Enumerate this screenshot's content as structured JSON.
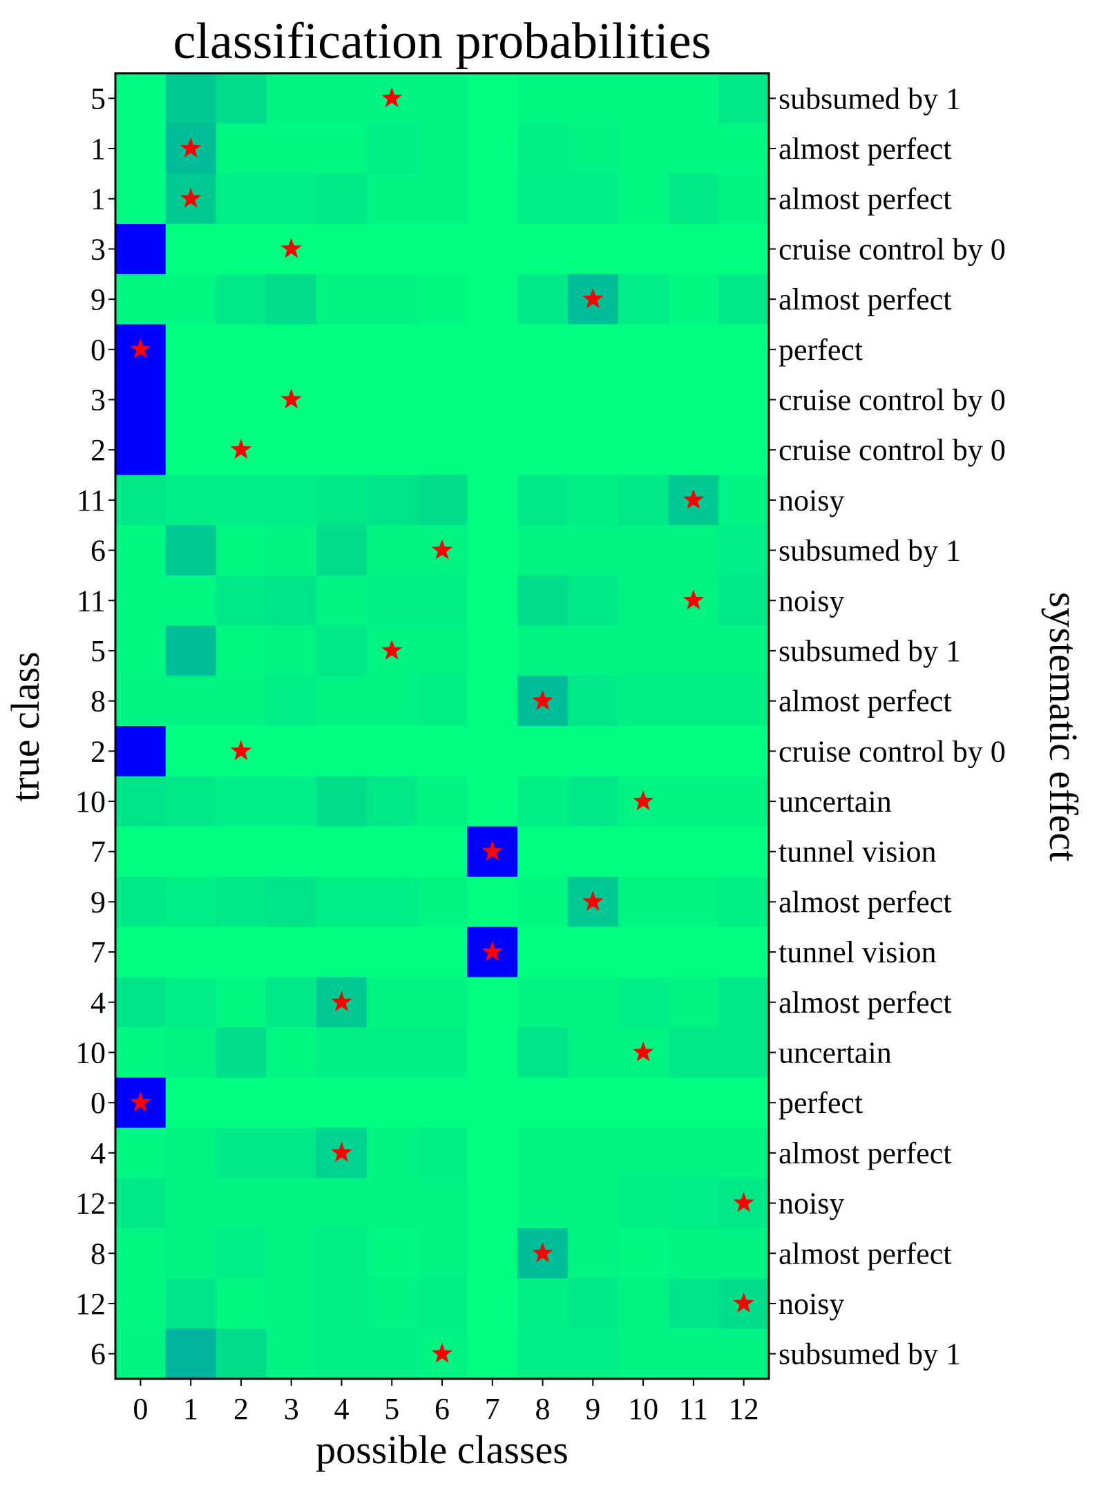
{
  "chart_data": {
    "type": "heatmap",
    "title": "classification probabilities",
    "xlabel": "possible classes",
    "ylabel": "true class",
    "right_label": "systematic effect",
    "x_categories": [
      "0",
      "1",
      "2",
      "3",
      "4",
      "5",
      "6",
      "7",
      "8",
      "9",
      "10",
      "11",
      "12"
    ],
    "y_categories": [
      "5",
      "1",
      "1",
      "3",
      "9",
      "0",
      "3",
      "2",
      "11",
      "6",
      "11",
      "5",
      "8",
      "2",
      "10",
      "7",
      "9",
      "7",
      "4",
      "10",
      "0",
      "4",
      "12",
      "8",
      "12",
      "6"
    ],
    "effects": [
      "subsumed by 1",
      "almost perfect",
      "almost perfect",
      "cruise control by 0",
      "almost perfect",
      "perfect",
      "cruise control by 0",
      "cruise control by 0",
      "noisy",
      "subsumed by 1",
      "noisy",
      "subsumed by 1",
      "almost perfect",
      "cruise control by 0",
      "uncertain",
      "tunnel vision",
      "almost perfect",
      "tunnel vision",
      "almost perfect",
      "uncertain",
      "perfect",
      "almost perfect",
      "noisy",
      "almost perfect",
      "noisy",
      "subsumed by 1"
    ],
    "star_columns": [
      5,
      1,
      1,
      3,
      9,
      0,
      3,
      2,
      11,
      6,
      11,
      5,
      8,
      2,
      10,
      7,
      9,
      7,
      4,
      10,
      0,
      4,
      12,
      8,
      12,
      6
    ],
    "values": [
      [
        0.02,
        0.25,
        0.15,
        0.05,
        0.05,
        0.05,
        0.05,
        0.0,
        0.03,
        0.03,
        0.03,
        0.03,
        0.1
      ],
      [
        0.02,
        0.3,
        0.03,
        0.03,
        0.03,
        0.07,
        0.05,
        0.0,
        0.07,
        0.05,
        0.03,
        0.03,
        0.03
      ],
      [
        0.02,
        0.25,
        0.08,
        0.08,
        0.1,
        0.05,
        0.05,
        0.0,
        0.08,
        0.08,
        0.03,
        0.1,
        0.05
      ],
      [
        1.0,
        0.0,
        0.0,
        0.0,
        0.0,
        0.0,
        0.0,
        0.0,
        0.0,
        0.0,
        0.0,
        0.0,
        0.0
      ],
      [
        0.03,
        0.03,
        0.1,
        0.15,
        0.05,
        0.05,
        0.03,
        0.0,
        0.1,
        0.3,
        0.08,
        0.03,
        0.1
      ],
      [
        1.0,
        0.0,
        0.0,
        0.0,
        0.0,
        0.0,
        0.0,
        0.0,
        0.0,
        0.0,
        0.0,
        0.0,
        0.0
      ],
      [
        1.0,
        0.0,
        0.0,
        0.0,
        0.0,
        0.0,
        0.0,
        0.0,
        0.0,
        0.0,
        0.0,
        0.0,
        0.0
      ],
      [
        1.0,
        0.0,
        0.0,
        0.0,
        0.0,
        0.0,
        0.0,
        0.0,
        0.0,
        0.0,
        0.0,
        0.0,
        0.0
      ],
      [
        0.1,
        0.08,
        0.08,
        0.08,
        0.1,
        0.12,
        0.15,
        0.0,
        0.1,
        0.07,
        0.1,
        0.25,
        0.05
      ],
      [
        0.03,
        0.25,
        0.03,
        0.05,
        0.15,
        0.05,
        0.05,
        0.0,
        0.05,
        0.05,
        0.05,
        0.05,
        0.08
      ],
      [
        0.03,
        0.03,
        0.1,
        0.12,
        0.05,
        0.07,
        0.07,
        0.0,
        0.15,
        0.1,
        0.05,
        0.05,
        0.1
      ],
      [
        0.03,
        0.3,
        0.03,
        0.05,
        0.1,
        0.05,
        0.05,
        0.0,
        0.05,
        0.05,
        0.05,
        0.05,
        0.05
      ],
      [
        0.05,
        0.05,
        0.05,
        0.08,
        0.05,
        0.05,
        0.07,
        0.0,
        0.3,
        0.1,
        0.07,
        0.07,
        0.07
      ],
      [
        1.0,
        0.0,
        0.0,
        0.0,
        0.0,
        0.0,
        0.0,
        0.0,
        0.0,
        0.0,
        0.0,
        0.0,
        0.0
      ],
      [
        0.12,
        0.1,
        0.08,
        0.08,
        0.15,
        0.1,
        0.05,
        0.0,
        0.07,
        0.1,
        0.05,
        0.05,
        0.05
      ],
      [
        0.0,
        0.0,
        0.0,
        0.0,
        0.0,
        0.0,
        0.0,
        1.0,
        0.0,
        0.0,
        0.0,
        0.0,
        0.0
      ],
      [
        0.1,
        0.08,
        0.1,
        0.12,
        0.08,
        0.08,
        0.05,
        0.0,
        0.03,
        0.25,
        0.05,
        0.05,
        0.07
      ],
      [
        0.0,
        0.0,
        0.0,
        0.0,
        0.0,
        0.0,
        0.0,
        1.0,
        0.0,
        0.0,
        0.0,
        0.0,
        0.0
      ],
      [
        0.12,
        0.08,
        0.03,
        0.1,
        0.25,
        0.05,
        0.05,
        0.0,
        0.05,
        0.05,
        0.08,
        0.05,
        0.1
      ],
      [
        0.03,
        0.05,
        0.15,
        0.03,
        0.07,
        0.07,
        0.07,
        0.0,
        0.12,
        0.05,
        0.05,
        0.1,
        0.1
      ],
      [
        1.0,
        0.0,
        0.0,
        0.0,
        0.0,
        0.0,
        0.0,
        0.0,
        0.0,
        0.0,
        0.0,
        0.0,
        0.0
      ],
      [
        0.03,
        0.05,
        0.1,
        0.1,
        0.2,
        0.05,
        0.07,
        0.0,
        0.05,
        0.05,
        0.05,
        0.05,
        0.05
      ],
      [
        0.1,
        0.05,
        0.05,
        0.05,
        0.05,
        0.05,
        0.05,
        0.0,
        0.05,
        0.05,
        0.07,
        0.08,
        0.1
      ],
      [
        0.03,
        0.05,
        0.08,
        0.05,
        0.07,
        0.03,
        0.05,
        0.0,
        0.3,
        0.05,
        0.03,
        0.05,
        0.05
      ],
      [
        0.03,
        0.12,
        0.03,
        0.05,
        0.07,
        0.05,
        0.07,
        0.0,
        0.07,
        0.1,
        0.05,
        0.12,
        0.15
      ],
      [
        0.05,
        0.35,
        0.15,
        0.05,
        0.07,
        0.07,
        0.05,
        0.0,
        0.08,
        0.08,
        0.05,
        0.05,
        0.05
      ]
    ],
    "colormap": {
      "low": "#00ff80",
      "mid": "#00a8a0",
      "high": "#0000ff"
    },
    "marker_color": "#ff0000",
    "grid": false,
    "legend": "none"
  }
}
